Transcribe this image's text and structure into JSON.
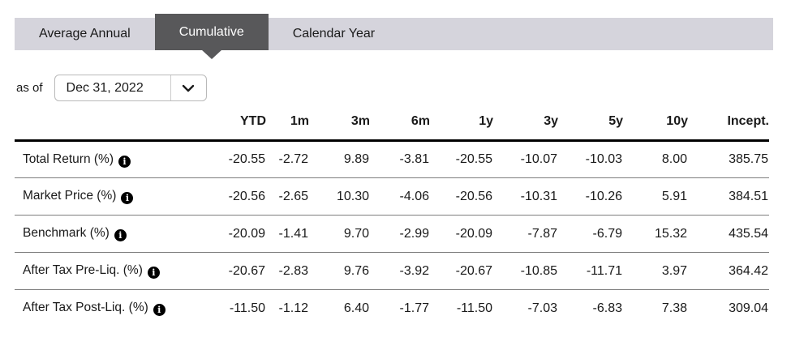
{
  "tabs": {
    "items": [
      {
        "label": "Average Annual",
        "active": false
      },
      {
        "label": "Cumulative",
        "active": true
      },
      {
        "label": "Calendar Year",
        "active": false
      }
    ]
  },
  "as_of": {
    "label": "as of",
    "value": "Dec 31, 2022"
  },
  "table": {
    "columns": [
      "YTD",
      "1m",
      "3m",
      "6m",
      "1y",
      "3y",
      "5y",
      "10y",
      "Incept."
    ],
    "rows": [
      {
        "label": "Total Return (%)",
        "values": [
          "-20.55",
          "-2.72",
          "9.89",
          "-3.81",
          "-20.55",
          "-10.07",
          "-10.03",
          "8.00",
          "385.75"
        ]
      },
      {
        "label": "Market Price (%)",
        "values": [
          "-20.56",
          "-2.65",
          "10.30",
          "-4.06",
          "-20.56",
          "-10.31",
          "-10.26",
          "5.91",
          "384.51"
        ]
      },
      {
        "label": "Benchmark (%)",
        "values": [
          "-20.09",
          "-1.41",
          "9.70",
          "-2.99",
          "-20.09",
          "-7.87",
          "-6.79",
          "15.32",
          "435.54"
        ]
      },
      {
        "label": "After Tax Pre-Liq. (%)",
        "values": [
          "-20.67",
          "-2.83",
          "9.76",
          "-3.92",
          "-20.67",
          "-10.85",
          "-11.71",
          "3.97",
          "364.42"
        ]
      },
      {
        "label": "After Tax Post-Liq. (%)",
        "values": [
          "-11.50",
          "-1.12",
          "6.40",
          "-1.77",
          "-11.50",
          "-7.03",
          "-6.83",
          "7.38",
          "309.04"
        ]
      }
    ]
  },
  "icons": {
    "info_glyph": "i",
    "chevron": "chevron-down-icon"
  },
  "colors": {
    "tab_bar_bg": "#d5d4dc",
    "active_tab_bg": "#58585a",
    "active_tab_text": "#ffffff",
    "text": "#1a1a1a",
    "header_rule": "#000000",
    "row_divider": "#7d7d7d",
    "dropdown_border": "#b9b9b9"
  }
}
